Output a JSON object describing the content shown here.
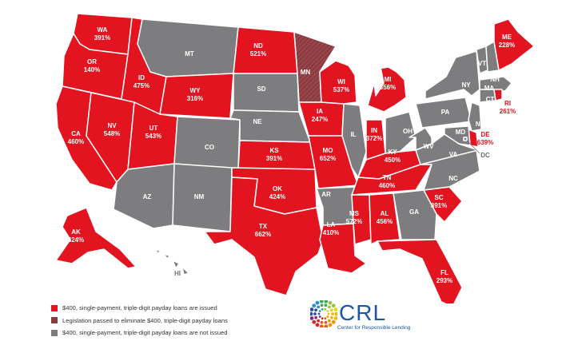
{
  "colors": {
    "issued": "#e1141f",
    "legislation": "#8b3a3f",
    "not_issued": "#7d7d7f"
  },
  "states": {
    "WA": {
      "status": "issued",
      "rate": "391%"
    },
    "OR": {
      "status": "issued",
      "rate": "140%"
    },
    "ID": {
      "status": "issued",
      "rate": "475%"
    },
    "MT": {
      "status": "not_issued"
    },
    "WY": {
      "status": "issued",
      "rate": "316%"
    },
    "CA": {
      "status": "issued",
      "rate": "460%"
    },
    "NV": {
      "status": "issued",
      "rate": "548%"
    },
    "UT": {
      "status": "issued",
      "rate": "543%"
    },
    "CO": {
      "status": "not_issued"
    },
    "AZ": {
      "status": "not_issued"
    },
    "NM": {
      "status": "not_issued"
    },
    "ND": {
      "status": "issued",
      "rate": "521%"
    },
    "SD": {
      "status": "not_issued"
    },
    "NE": {
      "status": "not_issued"
    },
    "KS": {
      "status": "issued",
      "rate": "391%"
    },
    "OK": {
      "status": "issued",
      "rate": "424%"
    },
    "TX": {
      "status": "issued",
      "rate": "662%"
    },
    "MN": {
      "status": "legislation"
    },
    "IA": {
      "status": "issued",
      "rate": "247%"
    },
    "MO": {
      "status": "issued",
      "rate": "652%"
    },
    "AR": {
      "status": "not_issued"
    },
    "LA": {
      "status": "issued",
      "rate": "410%"
    },
    "WI": {
      "status": "issued",
      "rate": "537%"
    },
    "IL": {
      "status": "not_issued"
    },
    "MI": {
      "status": "issued",
      "rate": "356%"
    },
    "IN": {
      "status": "issued",
      "rate": "372%"
    },
    "OH": {
      "status": "not_issued"
    },
    "KY": {
      "status": "issued",
      "rate": "450%"
    },
    "TN": {
      "status": "issued",
      "rate": "460%"
    },
    "MS": {
      "status": "issued",
      "rate": "572%"
    },
    "AL": {
      "status": "issued",
      "rate": "456%"
    },
    "GA": {
      "status": "not_issued"
    },
    "FL": {
      "status": "issued",
      "rate": "293%"
    },
    "SC": {
      "status": "issued",
      "rate": "391%"
    },
    "NC": {
      "status": "not_issued"
    },
    "VA": {
      "status": "not_issued"
    },
    "WV": {
      "status": "not_issued"
    },
    "PA": {
      "status": "not_issued"
    },
    "NY": {
      "status": "not_issued"
    },
    "VT": {
      "status": "not_issued"
    },
    "NH": {
      "status": "not_issued"
    },
    "ME": {
      "status": "issued",
      "rate": "228%"
    },
    "MA": {
      "status": "not_issued"
    },
    "CT": {
      "status": "not_issued"
    },
    "RI": {
      "status": "issued",
      "rate": "261%"
    },
    "NJ": {
      "status": "not_issued"
    },
    "DE": {
      "status": "issued",
      "rate": "639%"
    },
    "MD": {
      "status": "not_issued"
    },
    "DC": {
      "status": "not_issued"
    },
    "AK": {
      "status": "issued",
      "rate": "424%"
    },
    "HI": {
      "status": "not_issued"
    }
  },
  "legend": [
    {
      "status": "issued",
      "label": "$400, single-payment, triple-digit payday loans are issued"
    },
    {
      "status": "legislation",
      "label": "Legislation passed to eliminate $400, triple-digit payday loans"
    },
    {
      "status": "not_issued",
      "label": "$400, single-payment, triple-digit payday loans are not issued"
    }
  ],
  "logo": {
    "name": "CRL",
    "subtitle": "Center for Responsible Lending"
  }
}
